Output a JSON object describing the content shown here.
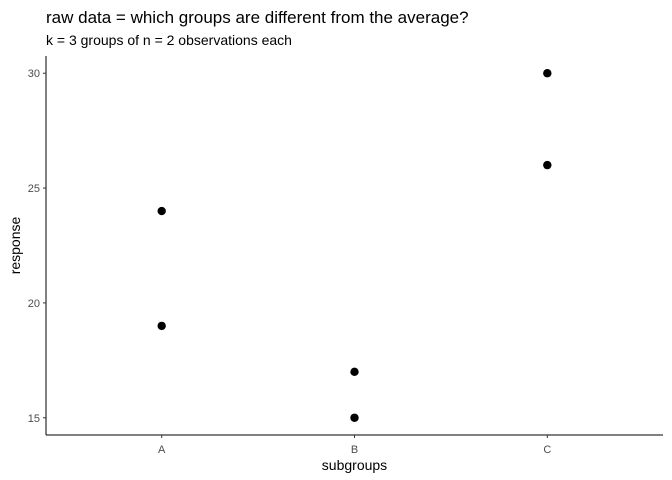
{
  "chart_data": {
    "type": "scatter",
    "title": "raw data = which groups are different from the average?",
    "subtitle": "k = 3 groups of n = 2 observations each",
    "xlabel": "subgroups",
    "ylabel": "response",
    "categories": [
      "A",
      "B",
      "C"
    ],
    "yticks": [
      15,
      20,
      25,
      30
    ],
    "ylim": [
      14.25,
      30.75
    ],
    "grid": false,
    "legend": "none",
    "points": [
      {
        "x": "A",
        "y": 24
      },
      {
        "x": "A",
        "y": 19
      },
      {
        "x": "B",
        "y": 17
      },
      {
        "x": "B",
        "y": 15
      },
      {
        "x": "C",
        "y": 30
      },
      {
        "x": "C",
        "y": 26
      }
    ],
    "point_color": "#000000"
  }
}
